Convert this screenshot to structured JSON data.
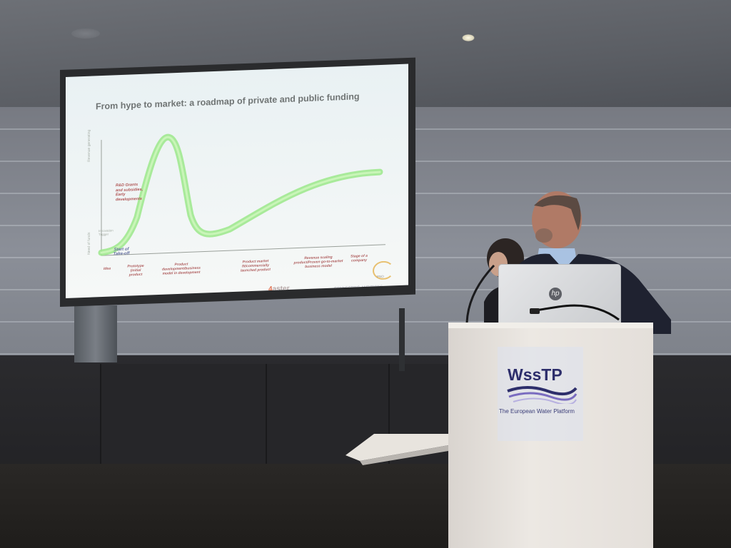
{
  "slide": {
    "title": "From hype to market: a roadmap of private and public funding",
    "axis_label": "Revenue generating",
    "curve_label_red": "R&D Grants and subsidies, Early developments",
    "lower_left_label": "Need of funds",
    "faint_left": "Innovation Trigger",
    "start_label": "Start of Take-off",
    "stages": [
      "Idea",
      "Prototype (initial product",
      "Product development/business model in development",
      "Product market fit/commercially launched product",
      "Revenue scaling product/Proven go-to-market business model",
      "Stage of a company"
    ],
    "logo": "aster",
    "logo_prefix": "4",
    "partner_text": "CONNECTING AMBITIONS",
    "partner_logo": "PNO"
  },
  "podium": {
    "sign_title": "WssTP",
    "sign_subtitle": "The European Water Platform"
  },
  "laptop": {
    "brand": "hp"
  },
  "colors": {
    "curve": "#7fe06a",
    "sign_text": "#2d2e6b",
    "slide_title": "#6f7474"
  }
}
